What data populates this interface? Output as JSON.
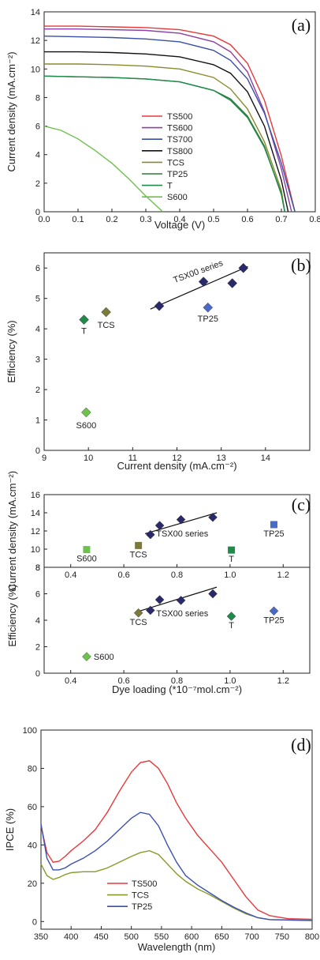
{
  "chart_data": [
    {
      "type": "line",
      "panel_label": "(a)",
      "xlabel": "Voltage (V)",
      "ylabel": "Current density (mA.cm⁻²)",
      "xlim": [
        0.0,
        0.8
      ],
      "ylim": [
        0,
        14
      ],
      "xticks": [
        "0.0",
        "0.1",
        "0.2",
        "0.3",
        "0.4",
        "0.5",
        "0.6",
        "0.7",
        "0.8"
      ],
      "yticks": [
        "0",
        "2",
        "4",
        "6",
        "8",
        "10",
        "12",
        "14"
      ],
      "legend_position": "center-right",
      "series": [
        {
          "name": "TS500",
          "color": "#e8383a",
          "points": [
            [
              0,
              13.0
            ],
            [
              0.1,
              13.0
            ],
            [
              0.2,
              12.95
            ],
            [
              0.3,
              12.9
            ],
            [
              0.4,
              12.75
            ],
            [
              0.5,
              12.3
            ],
            [
              0.55,
              11.7
            ],
            [
              0.6,
              10.4
            ],
            [
              0.65,
              7.8
            ],
            [
              0.7,
              3.9
            ],
            [
              0.74,
              0
            ]
          ]
        },
        {
          "name": "TS600",
          "color": "#8e3ea8",
          "points": [
            [
              0,
              12.8
            ],
            [
              0.1,
              12.8
            ],
            [
              0.2,
              12.75
            ],
            [
              0.3,
              12.7
            ],
            [
              0.4,
              12.5
            ],
            [
              0.5,
              11.9
            ],
            [
              0.55,
              11.2
            ],
            [
              0.6,
              9.8
            ],
            [
              0.65,
              7.0
            ],
            [
              0.7,
              3.0
            ],
            [
              0.73,
              0
            ]
          ]
        },
        {
          "name": "TS700",
          "color": "#3a4fa6",
          "points": [
            [
              0,
              12.3
            ],
            [
              0.1,
              12.25
            ],
            [
              0.2,
              12.2
            ],
            [
              0.3,
              12.1
            ],
            [
              0.4,
              11.9
            ],
            [
              0.5,
              11.3
            ],
            [
              0.55,
              10.6
            ],
            [
              0.6,
              9.3
            ],
            [
              0.65,
              6.9
            ],
            [
              0.7,
              3.4
            ],
            [
              0.74,
              0
            ]
          ]
        },
        {
          "name": "TS800",
          "color": "#111111",
          "points": [
            [
              0,
              11.2
            ],
            [
              0.1,
              11.2
            ],
            [
              0.2,
              11.15
            ],
            [
              0.3,
              11.05
            ],
            [
              0.4,
              10.85
            ],
            [
              0.5,
              10.3
            ],
            [
              0.55,
              9.7
            ],
            [
              0.6,
              8.4
            ],
            [
              0.65,
              6.0
            ],
            [
              0.7,
              2.2
            ],
            [
              0.72,
              0
            ]
          ]
        },
        {
          "name": "TCS",
          "color": "#8a8a2a",
          "points": [
            [
              0,
              10.35
            ],
            [
              0.1,
              10.35
            ],
            [
              0.2,
              10.3
            ],
            [
              0.3,
              10.2
            ],
            [
              0.4,
              10.0
            ],
            [
              0.5,
              9.4
            ],
            [
              0.55,
              8.6
            ],
            [
              0.6,
              7.2
            ],
            [
              0.65,
              4.9
            ],
            [
              0.7,
              1.5
            ],
            [
              0.71,
              0
            ]
          ]
        },
        {
          "name": "TP25",
          "color": "#2f7a3a",
          "points": [
            [
              0,
              9.5
            ],
            [
              0.1,
              9.45
            ],
            [
              0.2,
              9.4
            ],
            [
              0.3,
              9.3
            ],
            [
              0.4,
              9.1
            ],
            [
              0.5,
              8.5
            ],
            [
              0.55,
              7.9
            ],
            [
              0.6,
              6.7
            ],
            [
              0.65,
              4.6
            ],
            [
              0.7,
              1.2
            ],
            [
              0.71,
              0
            ]
          ]
        },
        {
          "name": "T",
          "color": "#1f8a4a",
          "points": [
            [
              0,
              9.5
            ],
            [
              0.1,
              9.45
            ],
            [
              0.2,
              9.4
            ],
            [
              0.3,
              9.3
            ],
            [
              0.4,
              9.1
            ],
            [
              0.5,
              8.5
            ],
            [
              0.55,
              7.8
            ],
            [
              0.6,
              6.6
            ],
            [
              0.65,
              4.5
            ],
            [
              0.7,
              1.3
            ],
            [
              0.71,
              0
            ]
          ]
        },
        {
          "name": "S600",
          "color": "#6cc24a",
          "points": [
            [
              0,
              6.0
            ],
            [
              0.05,
              5.7
            ],
            [
              0.1,
              5.1
            ],
            [
              0.15,
              4.3
            ],
            [
              0.2,
              3.4
            ],
            [
              0.25,
              2.3
            ],
            [
              0.3,
              1.1
            ],
            [
              0.35,
              0
            ]
          ]
        }
      ]
    },
    {
      "type": "scatter",
      "panel_label": "(b)",
      "xlabel": "Current density (mA.cm⁻²)",
      "ylabel": "Efficiency (%)",
      "xlim": [
        9,
        15
      ],
      "ylim": [
        0,
        6.5
      ],
      "xticks": [
        "9",
        "10",
        "11",
        "12",
        "13",
        "14"
      ],
      "yticks": [
        "0",
        "1",
        "2",
        "3",
        "4",
        "5",
        "6"
      ],
      "points": [
        {
          "label": "T",
          "x": 9.9,
          "y": 4.3,
          "color": "#1f8a4a"
        },
        {
          "label": "TCS",
          "x": 10.4,
          "y": 4.55,
          "color": "#7a7a3a"
        },
        {
          "label": "S600",
          "x": 9.95,
          "y": 1.25,
          "color": "#6cc24a"
        },
        {
          "label": "TP25",
          "x": 12.7,
          "y": 4.7,
          "color": "#4a6ac8"
        },
        {
          "label": "",
          "x": 11.6,
          "y": 4.75,
          "color": "#2a2a6a"
        },
        {
          "label": "",
          "x": 12.6,
          "y": 5.55,
          "color": "#2a2a6a"
        },
        {
          "label": "",
          "x": 13.25,
          "y": 5.5,
          "color": "#2a2a6a"
        },
        {
          "label": "",
          "x": 13.5,
          "y": 6.0,
          "color": "#2a2a6a"
        }
      ],
      "fit_line": {
        "x": [
          11.4,
          13.6
        ],
        "y": [
          4.65,
          6.05
        ]
      },
      "annotations": [
        {
          "text": "TSX00 series",
          "x": 12.5,
          "y": 5.8
        }
      ]
    },
    {
      "type": "scatter",
      "panel_label": "(c)",
      "xlabel": "Dye loading (*10⁻⁷mol.cm⁻²)",
      "xlim": [
        0.3,
        1.3
      ],
      "xticks": [
        "0.4",
        "0.6",
        "0.8",
        "1.0",
        "1.2"
      ],
      "upper": {
        "ylabel": "Current density (mA.cm⁻²)",
        "ylim": [
          8,
          16
        ],
        "yticks": [
          "8",
          "10",
          "12",
          "14",
          "16"
        ],
        "points": [
          {
            "label": "S600",
            "x": 0.46,
            "y": 9.95,
            "color": "#6cc24a",
            "marker": "square"
          },
          {
            "label": "TCS",
            "x": 0.655,
            "y": 10.4,
            "color": "#7a7a3a",
            "marker": "square"
          },
          {
            "label": "T",
            "x": 1.005,
            "y": 9.9,
            "color": "#1f8a4a",
            "marker": "square"
          },
          {
            "label": "TP25",
            "x": 1.165,
            "y": 12.7,
            "color": "#4a6ac8",
            "marker": "square"
          },
          {
            "label": "",
            "x": 0.7,
            "y": 11.6,
            "color": "#2a2a6a",
            "marker": "diamond"
          },
          {
            "label": "",
            "x": 0.735,
            "y": 12.6,
            "color": "#2a2a6a",
            "marker": "diamond"
          },
          {
            "label": "",
            "x": 0.815,
            "y": 13.25,
            "color": "#2a2a6a",
            "marker": "diamond"
          },
          {
            "label": "",
            "x": 0.935,
            "y": 13.5,
            "color": "#2a2a6a",
            "marker": "diamond"
          }
        ],
        "fit_line": {
          "x": [
            0.68,
            0.95
          ],
          "y": [
            11.7,
            14.0
          ]
        },
        "annotations": [
          {
            "text": "TSX00 series",
            "x": 0.82,
            "y": 11.4
          }
        ]
      },
      "lower": {
        "ylabel": "Efficiency (%)",
        "ylim": [
          0,
          8
        ],
        "yticks": [
          "0",
          "2",
          "4",
          "6",
          "8"
        ],
        "points": [
          {
            "label": "S600",
            "x": 0.46,
            "y": 1.25,
            "color": "#6cc24a",
            "marker": "diamond"
          },
          {
            "label": "TCS",
            "x": 0.655,
            "y": 4.55,
            "color": "#7a7a3a",
            "marker": "diamond"
          },
          {
            "label": "T",
            "x": 1.005,
            "y": 4.3,
            "color": "#1f8a4a",
            "marker": "diamond"
          },
          {
            "label": "TP25",
            "x": 1.165,
            "y": 4.7,
            "color": "#4a6ac8",
            "marker": "diamond"
          },
          {
            "label": "",
            "x": 0.7,
            "y": 4.75,
            "color": "#2a2a6a",
            "marker": "diamond"
          },
          {
            "label": "",
            "x": 0.735,
            "y": 5.55,
            "color": "#2a2a6a",
            "marker": "diamond"
          },
          {
            "label": "",
            "x": 0.815,
            "y": 5.5,
            "color": "#2a2a6a",
            "marker": "diamond"
          },
          {
            "label": "",
            "x": 0.935,
            "y": 6.0,
            "color": "#2a2a6a",
            "marker": "diamond"
          }
        ],
        "fit_line": {
          "x": [
            0.66,
            0.95
          ],
          "y": [
            4.7,
            6.5
          ]
        },
        "annotations": [
          {
            "text": "TSX00 series",
            "x": 0.82,
            "y": 4.3
          }
        ]
      }
    },
    {
      "type": "line",
      "panel_label": "(d)",
      "xlabel": "Wavelength (nm)",
      "ylabel": "IPCE (%)",
      "xlim": [
        350,
        800
      ],
      "ylim": [
        -4,
        100
      ],
      "xticks": [
        "350",
        "400",
        "450",
        "500",
        "550",
        "600",
        "650",
        "700",
        "750",
        "800"
      ],
      "yticks": [
        "0",
        "20",
        "40",
        "60",
        "80",
        "100"
      ],
      "legend_position": "bottom-left",
      "series": [
        {
          "name": "TS500",
          "color": "#e8383a",
          "points": [
            [
              350,
              50
            ],
            [
              360,
              36
            ],
            [
              370,
              31
            ],
            [
              380,
              31.5
            ],
            [
              390,
              34
            ],
            [
              400,
              37
            ],
            [
              420,
              42
            ],
            [
              440,
              48
            ],
            [
              460,
              57
            ],
            [
              480,
              68
            ],
            [
              500,
              78
            ],
            [
              515,
              83
            ],
            [
              530,
              84
            ],
            [
              545,
              80
            ],
            [
              560,
              72
            ],
            [
              575,
              62
            ],
            [
              590,
              54
            ],
            [
              610,
              45
            ],
            [
              630,
              38
            ],
            [
              650,
              31
            ],
            [
              670,
              22
            ],
            [
              690,
              13
            ],
            [
              710,
              6
            ],
            [
              730,
              3
            ],
            [
              760,
              1.5
            ],
            [
              800,
              1.2
            ]
          ]
        },
        {
          "name": "TCS",
          "color": "#8a9a2a",
          "points": [
            [
              350,
              30
            ],
            [
              360,
              24
            ],
            [
              370,
              22
            ],
            [
              380,
              23
            ],
            [
              390,
              24.5
            ],
            [
              400,
              25.5
            ],
            [
              420,
              26
            ],
            [
              440,
              26
            ],
            [
              460,
              28
            ],
            [
              480,
              31
            ],
            [
              500,
              34
            ],
            [
              515,
              36
            ],
            [
              530,
              37
            ],
            [
              545,
              35
            ],
            [
              560,
              30
            ],
            [
              575,
              25
            ],
            [
              590,
              21
            ],
            [
              610,
              17
            ],
            [
              630,
              14
            ],
            [
              650,
              10.5
            ],
            [
              670,
              7
            ],
            [
              690,
              4
            ],
            [
              710,
              2
            ],
            [
              730,
              1
            ],
            [
              800,
              0.8
            ]
          ]
        },
        {
          "name": "TP25",
          "color": "#3a4fb0",
          "points": [
            [
              350,
              51
            ],
            [
              360,
              33
            ],
            [
              370,
              27
            ],
            [
              380,
              27
            ],
            [
              390,
              28
            ],
            [
              400,
              30
            ],
            [
              420,
              33
            ],
            [
              440,
              37
            ],
            [
              460,
              42
            ],
            [
              480,
              48
            ],
            [
              500,
              54
            ],
            [
              515,
              57
            ],
            [
              530,
              56
            ],
            [
              545,
              50
            ],
            [
              560,
              40
            ],
            [
              575,
              31
            ],
            [
              590,
              24
            ],
            [
              610,
              19
            ],
            [
              630,
              15
            ],
            [
              650,
              11
            ],
            [
              670,
              7.5
            ],
            [
              690,
              4.5
            ],
            [
              710,
              2
            ],
            [
              730,
              1
            ],
            [
              800,
              0.5
            ]
          ]
        }
      ]
    }
  ]
}
